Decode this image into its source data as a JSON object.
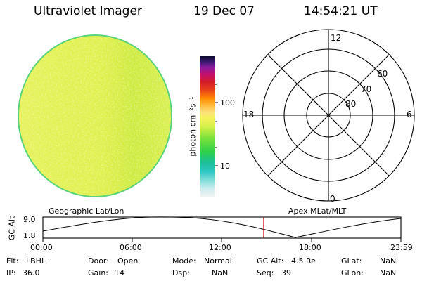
{
  "header": {
    "instrument": "Ultraviolet Imager",
    "date": "19 Dec 07",
    "time": "14:54:21 UT"
  },
  "colorbar": {
    "unit_label": "photon cm⁻²s⁻¹",
    "tick_labels": [
      "100",
      "10"
    ]
  },
  "polar": {
    "mlt_labels": {
      "top": "12",
      "left": "18",
      "right": "6",
      "bottom": "0"
    },
    "lat_labels": [
      "60",
      "70",
      "80"
    ]
  },
  "timeline": {
    "left_title": "Geographic Lat/Lon",
    "right_title": "Apex MLat/MLT",
    "axis_title": "GC Alt",
    "y_ticks": [
      "9.0",
      "1.8"
    ],
    "x_ticks": [
      "00:00",
      "06:00",
      "12:00",
      "18:00",
      "23:59"
    ]
  },
  "info": {
    "rows": [
      [
        {
          "label": "Flt:",
          "value": "LBHL"
        },
        {
          "label": "Door:",
          "value": "Open"
        },
        {
          "label": "Mode:",
          "value": "Normal"
        },
        {
          "label": "GC Alt:",
          "value": "4.5 Re"
        },
        {
          "label": "GLat:",
          "value": "NaN"
        }
      ],
      [
        {
          "label": "IP:",
          "value": "36.0"
        },
        {
          "label": "Gain:",
          "value": "14"
        },
        {
          "label": "Dsp:",
          "value": "NaN"
        },
        {
          "label": "Seq:",
          "value": "39"
        },
        {
          "label": "GLon:",
          "value": "NaN"
        }
      ]
    ]
  },
  "colors": {
    "disk_base": "#e8f560",
    "disk_rim": "#5cd37a",
    "marker": "#cc0000"
  }
}
